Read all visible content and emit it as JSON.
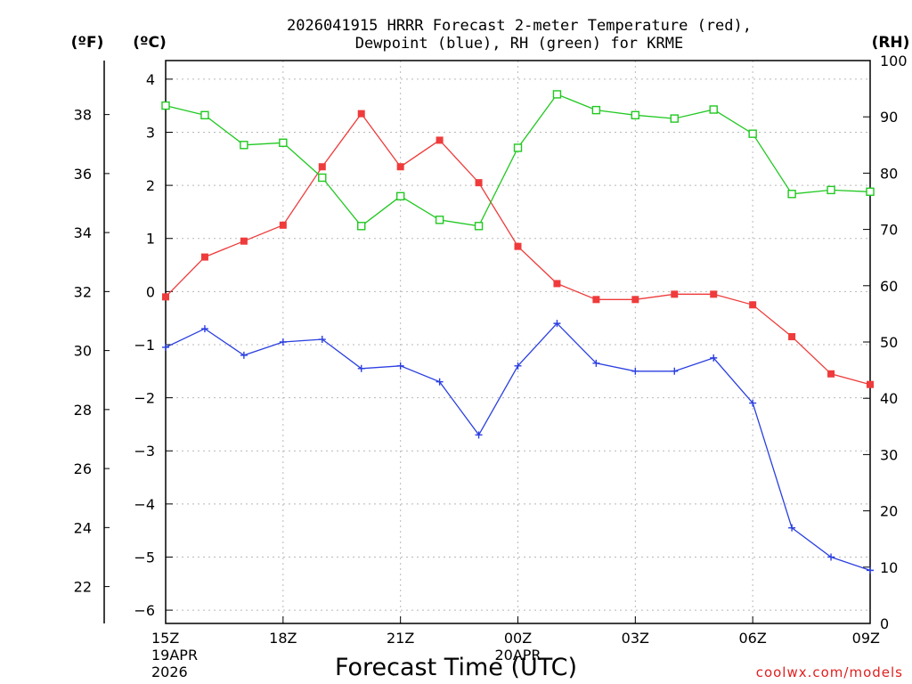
{
  "chart_data": {
    "type": "line",
    "title_line1": "2026041915 HRRR Forecast 2-meter Temperature (red),",
    "title_line2": "Dewpoint (blue), RH (green) for KRME",
    "xlabel": "Forecast Time (UTC)",
    "credit": "coolwx.com/models",
    "axis_labels": {
      "fahrenheit": "(ºF)",
      "celsius": "(ºC)",
      "rh": "(RH)"
    },
    "x_ticks": [
      {
        "hour": 0,
        "label": "15Z",
        "sub1": "19APR",
        "sub2": "2026"
      },
      {
        "hour": 3,
        "label": "18Z",
        "sub1": "",
        "sub2": ""
      },
      {
        "hour": 6,
        "label": "21Z",
        "sub1": "",
        "sub2": ""
      },
      {
        "hour": 9,
        "label": "00Z",
        "sub1": "20APR",
        "sub2": ""
      },
      {
        "hour": 12,
        "label": "03Z",
        "sub1": "",
        "sub2": ""
      },
      {
        "hour": 15,
        "label": "06Z",
        "sub1": "",
        "sub2": ""
      },
      {
        "hour": 18,
        "label": "09Z",
        "sub1": "",
        "sub2": ""
      }
    ],
    "x_range_hours": [
      0,
      18
    ],
    "celsius_range": [
      -6.25,
      4.35
    ],
    "celsius_ticks": [
      4,
      3,
      2,
      1,
      0,
      -1,
      -2,
      -3,
      -4,
      -5,
      -6
    ],
    "fahrenheit_ticks": [
      38,
      36,
      34,
      32,
      30,
      28,
      26,
      24,
      22
    ],
    "rh_range": [
      0,
      100
    ],
    "rh_ticks": [
      100,
      90,
      80,
      70,
      60,
      50,
      40,
      30,
      20,
      10,
      0
    ],
    "colors": {
      "temperature": "#ef3b3b",
      "dewpoint": "#2b3fe0",
      "rh": "#20c820"
    },
    "series": [
      {
        "key": "temperature",
        "axis": "celsius",
        "marker": "filled-square",
        "values": [
          -0.1,
          0.65,
          0.95,
          1.25,
          2.35,
          3.35,
          2.35,
          2.85,
          2.05,
          0.85,
          0.15,
          -0.15,
          -0.15,
          -0.05,
          -0.05,
          -0.25,
          -0.85,
          -1.55,
          -1.75
        ]
      },
      {
        "key": "dewpoint",
        "axis": "celsius",
        "marker": "plus",
        "values": [
          -1.05,
          -0.7,
          -1.2,
          -0.95,
          -0.9,
          -1.45,
          -1.4,
          -1.7,
          -2.7,
          -1.4,
          -0.6,
          -1.35,
          -1.5,
          -1.5,
          -1.25,
          -2.1,
          -4.45,
          -5.0,
          -5.25
        ]
      },
      {
        "key": "rh",
        "axis": "rh",
        "marker": "open-square",
        "values": [
          92,
          90.3,
          85,
          85.4,
          79.2,
          70.6,
          75.9,
          71.7,
          70.6,
          84.5,
          94,
          91.2,
          90.3,
          89.7,
          91.3,
          87,
          76.3,
          77,
          76.7
        ]
      }
    ]
  }
}
